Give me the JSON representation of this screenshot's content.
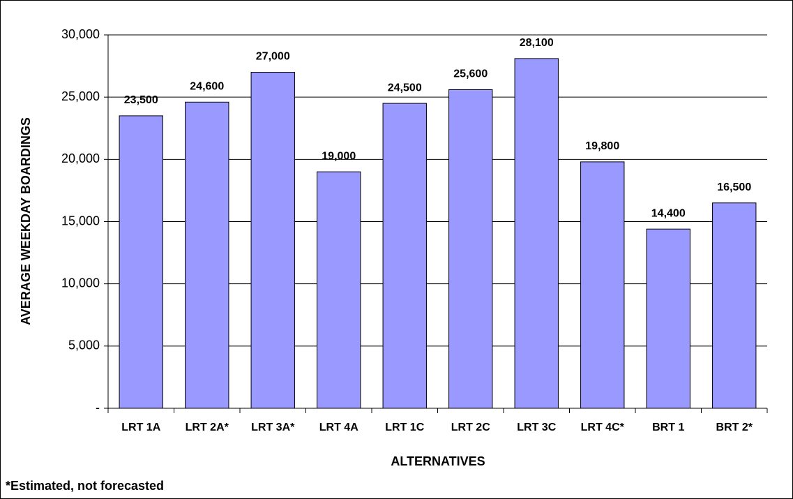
{
  "chart_data": {
    "type": "bar",
    "categories": [
      "LRT 1A",
      "LRT 2A*",
      "LRT 3A*",
      "LRT 4A",
      "LRT 1C",
      "LRT 2C",
      "LRT 3C",
      "LRT 4C*",
      "BRT 1",
      "BRT 2*"
    ],
    "values": [
      23500,
      24600,
      27000,
      19000,
      24500,
      25600,
      28100,
      19800,
      14400,
      16500
    ],
    "value_labels": [
      "23,500",
      "24,600",
      "27,000",
      "19,000",
      "24,500",
      "25,600",
      "28,100",
      "19,800",
      "14,400",
      "16,500"
    ],
    "color": "#9999ff",
    "xlabel": "ALTERNATIVES",
    "ylabel": "AVERAGE WEEKDAY BOARDINGS",
    "annotation": "*Estimated, not forecasted",
    "ylim": [
      0,
      30000
    ],
    "yticks": [
      {
        "value": 0,
        "label": "-"
      },
      {
        "value": 5000,
        "label": "5,000"
      },
      {
        "value": 10000,
        "label": "10,000"
      },
      {
        "value": 15000,
        "label": "15,000"
      },
      {
        "value": 20000,
        "label": "20,000"
      },
      {
        "value": 25000,
        "label": "25,000"
      },
      {
        "value": 30000,
        "label": "30,000"
      }
    ],
    "grid": true
  }
}
